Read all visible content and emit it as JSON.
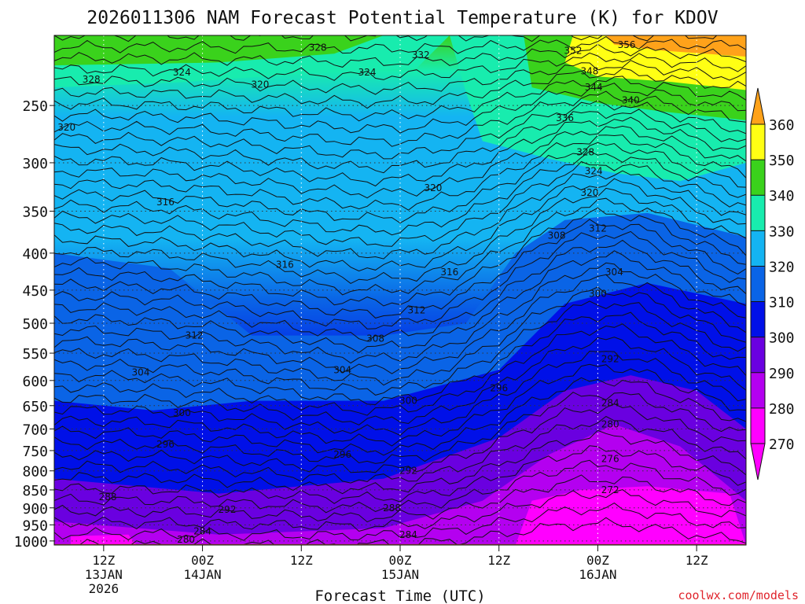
{
  "chart_data": {
    "type": "heatmap",
    "title": "2026011306 NAM Forecast Potential Temperature (K) for KDOV",
    "xlabel": "Forecast Time (UTC)",
    "ylabel": "",
    "x_ticks": [
      {
        "hour": 6,
        "line1": "12Z",
        "line2": "13JAN",
        "line3": "2026"
      },
      {
        "hour": 18,
        "line1": "00Z",
        "line2": "14JAN",
        "line3": ""
      },
      {
        "hour": 30,
        "line1": "12Z",
        "line2": "",
        "line3": ""
      },
      {
        "hour": 42,
        "line1": "00Z",
        "line2": "15JAN",
        "line3": ""
      },
      {
        "hour": 54,
        "line1": "12Z",
        "line2": "",
        "line3": ""
      },
      {
        "hour": 66,
        "line1": "00Z",
        "line2": "16JAN",
        "line3": ""
      },
      {
        "hour": 78,
        "line1": "12Z",
        "line2": "",
        "line3": ""
      }
    ],
    "x_range_hours": [
      0,
      84
    ],
    "y_ticks": [
      "250",
      "300",
      "350",
      "400",
      "450",
      "500",
      "550",
      "600",
      "650",
      "700",
      "750",
      "800",
      "850",
      "900",
      "950",
      "1000"
    ],
    "y_range_hpa": [
      200,
      1013
    ],
    "y_scale": "log-pressure",
    "grid": true,
    "colorbar": {
      "levels": [
        "270",
        "280",
        "290",
        "300",
        "310",
        "320",
        "330",
        "340",
        "350",
        "360"
      ],
      "colors": [
        "#ff00ff",
        "#b400f0",
        "#6a00e0",
        "#0010e8",
        "#0a64e6",
        "#14b4f2",
        "#18ecae",
        "#3ad21c",
        "#ffff14",
        "#ffa21a"
      ],
      "extend": "both",
      "placement": "right"
    },
    "contour_labels": [
      {
        "t": 32,
        "p": 208,
        "v": "328"
      },
      {
        "t": 44.5,
        "p": 213,
        "v": "332"
      },
      {
        "t": 69.5,
        "p": 206,
        "v": "356"
      },
      {
        "t": 63,
        "p": 210,
        "v": "352"
      },
      {
        "t": 65,
        "p": 224,
        "v": "348"
      },
      {
        "t": 65.5,
        "p": 236,
        "v": "344"
      },
      {
        "t": 70,
        "p": 246,
        "v": "340"
      },
      {
        "t": 62,
        "p": 260,
        "v": "336"
      },
      {
        "t": 4.5,
        "p": 230,
        "v": "328"
      },
      {
        "t": 15.5,
        "p": 225,
        "v": "324"
      },
      {
        "t": 38,
        "p": 225,
        "v": "324"
      },
      {
        "t": 25,
        "p": 234,
        "v": "320"
      },
      {
        "t": 1.5,
        "p": 268,
        "v": "320"
      },
      {
        "t": 64.5,
        "p": 290,
        "v": "328"
      },
      {
        "t": 65.5,
        "p": 308,
        "v": "324"
      },
      {
        "t": 65,
        "p": 330,
        "v": "320"
      },
      {
        "t": 46,
        "p": 325,
        "v": "320"
      },
      {
        "t": 13.5,
        "p": 340,
        "v": "316"
      },
      {
        "t": 28,
        "p": 415,
        "v": "316"
      },
      {
        "t": 48,
        "p": 425,
        "v": "316"
      },
      {
        "t": 61,
        "p": 378,
        "v": "308"
      },
      {
        "t": 66,
        "p": 370,
        "v": "312"
      },
      {
        "t": 68,
        "p": 425,
        "v": "304"
      },
      {
        "t": 44,
        "p": 480,
        "v": "312"
      },
      {
        "t": 66,
        "p": 455,
        "v": "300"
      },
      {
        "t": 17,
        "p": 520,
        "v": "312"
      },
      {
        "t": 39,
        "p": 525,
        "v": "308"
      },
      {
        "t": 10.5,
        "p": 585,
        "v": "304"
      },
      {
        "t": 35,
        "p": 580,
        "v": "304"
      },
      {
        "t": 67.5,
        "p": 560,
        "v": "292"
      },
      {
        "t": 54,
        "p": 615,
        "v": "296"
      },
      {
        "t": 43,
        "p": 640,
        "v": "300"
      },
      {
        "t": 67.5,
        "p": 645,
        "v": "284"
      },
      {
        "t": 67.5,
        "p": 690,
        "v": "280"
      },
      {
        "t": 15.5,
        "p": 665,
        "v": "300"
      },
      {
        "t": 13.5,
        "p": 735,
        "v": "296"
      },
      {
        "t": 35,
        "p": 760,
        "v": "296"
      },
      {
        "t": 43,
        "p": 800,
        "v": "292"
      },
      {
        "t": 67.5,
        "p": 770,
        "v": "276"
      },
      {
        "t": 67.5,
        "p": 850,
        "v": "272"
      },
      {
        "t": 6.5,
        "p": 870,
        "v": "288"
      },
      {
        "t": 21,
        "p": 905,
        "v": "292"
      },
      {
        "t": 41,
        "p": 900,
        "v": "288"
      },
      {
        "t": 18,
        "p": 970,
        "v": "284"
      },
      {
        "t": 43,
        "p": 980,
        "v": "284"
      },
      {
        "t": 16,
        "p": 995,
        "v": "280"
      }
    ],
    "watermark": "coolwx.com/models"
  }
}
